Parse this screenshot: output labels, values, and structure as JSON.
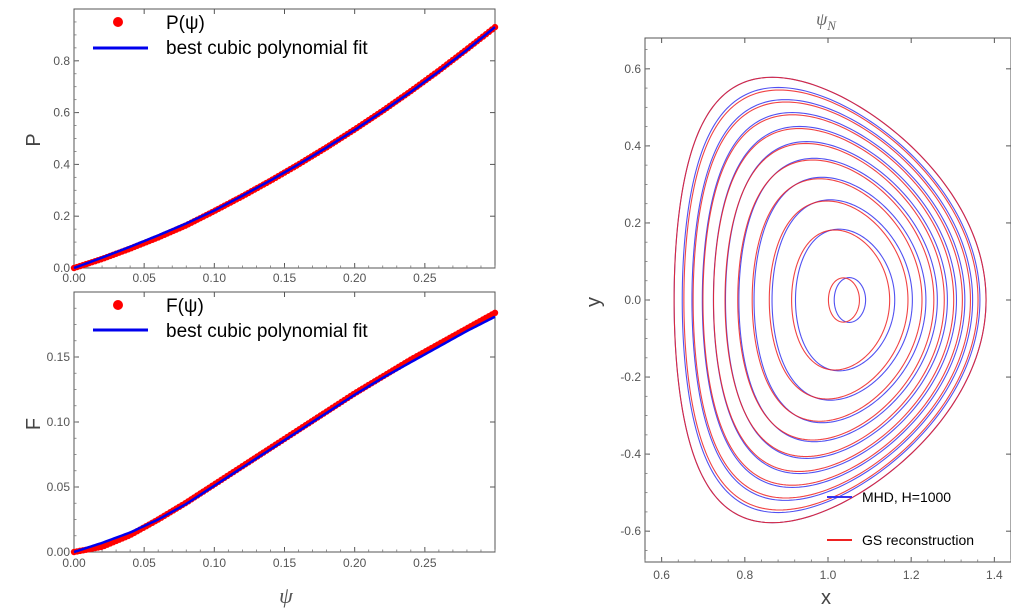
{
  "chart_data": [
    {
      "id": "p_plot",
      "type": "scatter",
      "xlabel": "",
      "ylabel": "P",
      "xlim": [
        0,
        0.3
      ],
      "ylim": [
        0,
        1.0
      ],
      "x_ticks": [
        "0.00",
        "0.05",
        "0.10",
        "0.15",
        "0.20",
        "0.25"
      ],
      "x_tick_values": [
        0,
        0.05,
        0.1,
        0.15,
        0.2,
        0.25
      ],
      "y_ticks": [
        "0.0",
        "0.2",
        "0.4",
        "0.6",
        "0.8"
      ],
      "y_tick_values": [
        0,
        0.2,
        0.4,
        0.6,
        0.8
      ],
      "series": [
        {
          "name": "P(ψ)",
          "kind": "points",
          "color": "#ff0000",
          "x": [
            0.0,
            0.02,
            0.04,
            0.06,
            0.08,
            0.1,
            0.12,
            0.14,
            0.16,
            0.18,
            0.2,
            0.22,
            0.24,
            0.26,
            0.28,
            0.3
          ],
          "y": [
            0.0,
            0.035,
            0.075,
            0.118,
            0.165,
            0.22,
            0.277,
            0.337,
            0.4,
            0.466,
            0.535,
            0.607,
            0.683,
            0.762,
            0.845,
            0.93
          ]
        },
        {
          "name": "best cubic polynomial fit",
          "kind": "line",
          "color": "#0000ee",
          "x": [
            0.0,
            0.02,
            0.04,
            0.06,
            0.08,
            0.1,
            0.12,
            0.14,
            0.16,
            0.18,
            0.2,
            0.22,
            0.24,
            0.26,
            0.28,
            0.3
          ],
          "y": [
            0.0,
            0.04,
            0.082,
            0.126,
            0.172,
            0.222,
            0.279,
            0.338,
            0.4,
            0.465,
            0.533,
            0.605,
            0.68,
            0.759,
            0.842,
            0.93
          ]
        }
      ],
      "legend_position": "top-left"
    },
    {
      "id": "f_plot",
      "type": "scatter",
      "xlabel": "ψ",
      "ylabel": "F",
      "xlim": [
        0,
        0.3
      ],
      "ylim": [
        0,
        0.2
      ],
      "x_ticks": [
        "0.00",
        "0.05",
        "0.10",
        "0.15",
        "0.20",
        "0.25"
      ],
      "x_tick_values": [
        0,
        0.05,
        0.1,
        0.15,
        0.2,
        0.25
      ],
      "y_ticks": [
        "0.00",
        "0.05",
        "0.10",
        "0.15"
      ],
      "y_tick_values": [
        0,
        0.05,
        0.1,
        0.15
      ],
      "series": [
        {
          "name": "F(ψ)",
          "kind": "points",
          "color": "#ff0000",
          "x": [
            0.0,
            0.02,
            0.04,
            0.06,
            0.08,
            0.1,
            0.12,
            0.14,
            0.16,
            0.18,
            0.2,
            0.22,
            0.24,
            0.26,
            0.28,
            0.3
          ],
          "y": [
            0.0,
            0.004,
            0.013,
            0.025,
            0.038,
            0.052,
            0.066,
            0.08,
            0.094,
            0.108,
            0.122,
            0.135,
            0.148,
            0.16,
            0.172,
            0.184
          ]
        },
        {
          "name": "best cubic polynomial fit",
          "kind": "line",
          "color": "#0000ee",
          "x": [
            0.0,
            0.02,
            0.04,
            0.06,
            0.08,
            0.1,
            0.12,
            0.14,
            0.16,
            0.18,
            0.2,
            0.22,
            0.24,
            0.26,
            0.28,
            0.3
          ],
          "y": [
            0.0,
            0.007,
            0.015,
            0.025,
            0.037,
            0.051,
            0.065,
            0.079,
            0.093,
            0.107,
            0.121,
            0.134,
            0.146,
            0.158,
            0.17,
            0.181
          ]
        }
      ],
      "legend_position": "top-left"
    },
    {
      "id": "psi_contour",
      "type": "line",
      "title": "ψN",
      "xlabel": "x",
      "ylabel": "y",
      "xlim": [
        0.56,
        1.44
      ],
      "ylim": [
        -0.68,
        0.68
      ],
      "x_ticks": [
        "0.6",
        "0.8",
        "1.0",
        "1.2",
        "1.4"
      ],
      "x_tick_values": [
        0.6,
        0.8,
        1.0,
        1.2,
        1.4
      ],
      "y_ticks": [
        "0.6",
        "0.4",
        "0.2",
        "0.0",
        "-0.2",
        "-0.4",
        "-0.6"
      ],
      "y_tick_values": [
        0.6,
        0.4,
        0.2,
        0.0,
        -0.2,
        -0.4,
        -0.6
      ],
      "contour_params": {
        "axis_center": [
          1.05,
          0.0
        ],
        "outer_center": [
          1.005,
          0.0
        ],
        "outer_half_width": 0.375,
        "outer_half_height": 0.578,
        "outer_triangularity": 0.38,
        "levels": [
          0.01,
          0.1,
          0.2,
          0.3,
          0.4,
          0.5,
          0.6,
          0.7,
          0.8,
          0.9,
          1.0
        ]
      },
      "series": [
        {
          "name": "MHD, H=1000",
          "color": "#3333ee",
          "level_shift": 0.012,
          "center_shift_x": 0.008
        },
        {
          "name": "GS reconstruction",
          "color": "#ee2222",
          "level_shift": -0.012,
          "center_shift_x": -0.008
        }
      ],
      "legend_position": "bottom-right"
    }
  ]
}
